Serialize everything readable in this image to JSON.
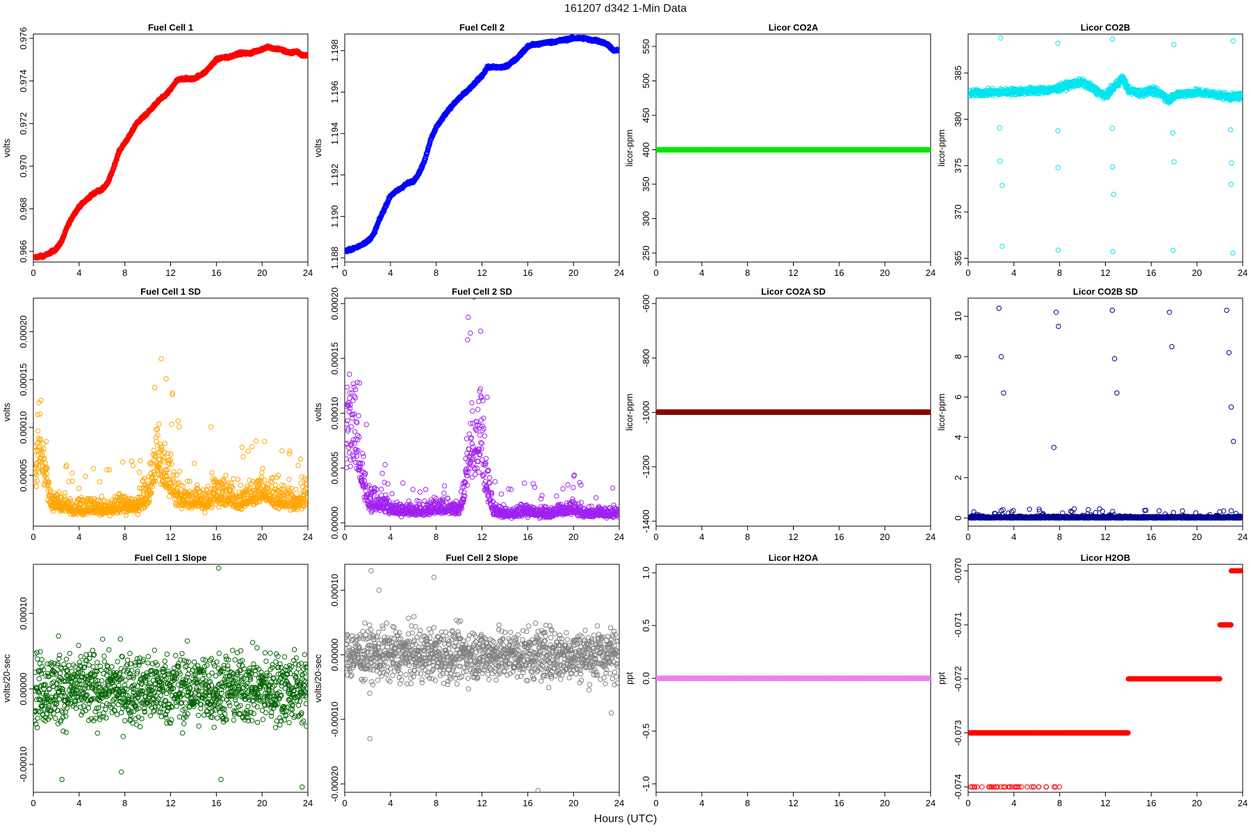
{
  "header": {
    "title": "161207   d342   1-Min Data"
  },
  "footer": {
    "xlabel": "Hours (UTC)"
  },
  "x_axis": {
    "range": [
      0,
      24
    ],
    "ticks": [
      "0",
      "4",
      "8",
      "12",
      "16",
      "20",
      "24"
    ]
  },
  "chart_data": [
    {
      "id": "fc1",
      "type": "scatter",
      "title": "Fuel Cell 1",
      "ylabel": "volts",
      "color": "#ff0000",
      "ylim": [
        0.9655,
        0.9762
      ],
      "yticks": [
        "0.966",
        "0.968",
        "0.970",
        "0.972",
        "0.974",
        "0.976"
      ],
      "ytick_values": [
        0.966,
        0.968,
        0.97,
        0.972,
        0.974,
        0.976
      ],
      "x": [
        0,
        1,
        2,
        2.5,
        3,
        3.5,
        4,
        5,
        5.5,
        6,
        6.5,
        7,
        7.5,
        8,
        8.5,
        9,
        10,
        11,
        11.5,
        12,
        12.5,
        13,
        13.5,
        14,
        15,
        15.5,
        16,
        16.5,
        17,
        17.5,
        18,
        19,
        20,
        20.5,
        21,
        21.5,
        22,
        22.5,
        23,
        23.5
      ],
      "y": [
        0.9657,
        0.9658,
        0.9661,
        0.9665,
        0.9672,
        0.9677,
        0.9681,
        0.9686,
        0.9688,
        0.9689,
        0.9692,
        0.9699,
        0.9707,
        0.9711,
        0.9715,
        0.972,
        0.9725,
        0.9731,
        0.9733,
        0.9736,
        0.974,
        0.9741,
        0.9741,
        0.9741,
        0.9744,
        0.9747,
        0.975,
        0.9751,
        0.9751,
        0.9752,
        0.9753,
        0.9753,
        0.9755,
        0.9756,
        0.9755,
        0.9755,
        0.9754,
        0.9753,
        0.9754,
        0.9752
      ]
    },
    {
      "id": "fc2",
      "type": "scatter",
      "title": "Fuel Cell 2",
      "ylabel": "volts",
      "color": "#0000ff",
      "ylim": [
        1.1878,
        1.1988
      ],
      "yticks": [
        "1.188",
        "1.190",
        "1.192",
        "1.194",
        "1.196",
        "1.198"
      ],
      "ytick_values": [
        1.188,
        1.19,
        1.192,
        1.194,
        1.196,
        1.198
      ],
      "x": [
        0,
        1,
        2,
        2.5,
        3,
        3.5,
        4,
        5,
        5.5,
        6,
        6.5,
        7,
        7.5,
        8,
        8.5,
        9,
        10,
        11,
        11.5,
        12,
        12.5,
        13,
        13.5,
        14,
        15,
        15.5,
        16,
        16.5,
        17,
        17.5,
        18,
        19,
        20,
        20.5,
        21,
        21.5,
        22,
        22.5,
        23,
        23.5
      ],
      "y": [
        1.1883,
        1.1885,
        1.1888,
        1.1891,
        1.1898,
        1.1904,
        1.191,
        1.1914,
        1.1916,
        1.1917,
        1.1921,
        1.1927,
        1.1937,
        1.1943,
        1.1947,
        1.1951,
        1.1957,
        1.1962,
        1.1965,
        1.1968,
        1.1972,
        1.1972,
        1.1972,
        1.1972,
        1.1976,
        1.1979,
        1.1982,
        1.1983,
        1.1983,
        1.1984,
        1.1984,
        1.1985,
        1.1986,
        1.1986,
        1.1986,
        1.1985,
        1.1985,
        1.1984,
        1.1983,
        1.198
      ]
    },
    {
      "id": "co2a",
      "type": "scatter",
      "title": "Licor CO2A",
      "ylabel": "licor-ppm",
      "color": "#00e600",
      "ylim": [
        237,
        568
      ],
      "yticks": [
        "250",
        "300",
        "350",
        "400",
        "450",
        "500",
        "550"
      ],
      "ytick_values": [
        250,
        300,
        350,
        400,
        450,
        500,
        550
      ],
      "x": [
        0,
        24
      ],
      "y": [
        400,
        400
      ]
    },
    {
      "id": "co2b",
      "type": "scatter",
      "title": "Licor CO2B",
      "ylabel": "licor-ppm",
      "color": "#00e5ee",
      "ylim": [
        364.6,
        389.2
      ],
      "yticks": [
        "365",
        "370",
        "375",
        "380",
        "385"
      ],
      "ytick_values": [
        365,
        370,
        375,
        380,
        385
      ],
      "x": [
        0,
        2,
        4,
        6,
        7.5,
        9,
        10,
        12,
        13,
        13.5,
        14,
        15,
        16,
        17,
        17.5,
        18,
        19,
        20,
        21,
        22,
        23,
        24
      ],
      "y": [
        382.8,
        382.9,
        383.0,
        383.1,
        383.2,
        383.8,
        384.0,
        382.5,
        383.8,
        384.5,
        383.2,
        382.8,
        383.1,
        382.7,
        382.0,
        382.6,
        382.8,
        382.9,
        382.8,
        382.6,
        382.4,
        382.5
      ]
    },
    {
      "id": "fc1sd",
      "type": "scatter",
      "title": "Fuel Cell 1 SD",
      "ylabel": "volts",
      "color": "#ffa500",
      "ylim": [
        -3e-06,
        0.000235
      ],
      "yticks": [
        "0.00005",
        "0.00010",
        "0.00015",
        "0.00020"
      ],
      "ytick_values": [
        5e-05,
        0.0001,
        0.00015,
        0.0002
      ],
      "x": [
        0,
        0.5,
        1,
        1.5,
        2,
        3,
        4,
        5,
        6,
        7,
        8,
        9,
        10,
        10.5,
        11,
        11.5,
        12,
        12.5,
        13,
        14,
        15,
        16,
        17,
        18,
        19,
        20,
        21,
        22,
        23,
        23.5
      ],
      "y": [
        4e-05,
        8e-05,
        5e-05,
        2e-05,
        2e-05,
        1.5e-05,
        1.3e-05,
        1.5e-05,
        1.4e-05,
        1.5e-05,
        1.7e-05,
        1.6e-05,
        3e-05,
        5e-05,
        6e-05,
        5e-05,
        4e-05,
        3e-05,
        2.5e-05,
        2.2e-05,
        2e-05,
        3e-05,
        2.5e-05,
        2e-05,
        2.5e-05,
        3e-05,
        2.5e-05,
        2.2e-05,
        2e-05,
        2.5e-05
      ]
    },
    {
      "id": "fc2sd",
      "type": "scatter",
      "title": "Fuel Cell 2 SD",
      "ylabel": "volts",
      "color": "#a020f0",
      "ylim": [
        -3e-06,
        0.000205
      ],
      "yticks": [
        "0.00000",
        "0.00005",
        "0.00010",
        "0.00015",
        "0.00020"
      ],
      "ytick_values": [
        0,
        5e-05,
        0.0001,
        0.00015,
        0.0002
      ],
      "x": [
        0,
        0.5,
        1,
        1.5,
        2,
        3,
        4,
        5,
        6,
        7,
        8,
        9,
        10,
        10.5,
        11,
        11.5,
        12,
        12.5,
        13,
        14,
        15,
        16,
        17,
        18,
        19,
        20,
        21,
        22,
        23,
        23.5
      ],
      "y": [
        6e-05,
        9e-05,
        7e-05,
        4e-05,
        2e-05,
        1.5e-05,
        1.2e-05,
        1e-05,
        1e-05,
        1e-05,
        1.2e-05,
        1.2e-05,
        1e-05,
        3e-05,
        6e-05,
        7e-05,
        6e-05,
        3e-05,
        1e-05,
        8e-06,
        8e-06,
        1e-05,
        8e-06,
        8e-06,
        1e-05,
        1.2e-05,
        8e-06,
        8e-06,
        8e-06,
        8e-06
      ]
    },
    {
      "id": "co2asd",
      "type": "scatter",
      "title": "Licor CO2A SD",
      "ylabel": "licor-ppm",
      "color": "#8b0000",
      "ylim": [
        -1418,
        -580
      ],
      "yticks": [
        "-1400",
        "-1200",
        "-1000",
        "-800",
        "-600"
      ],
      "ytick_values": [
        -1400,
        -1200,
        -1000,
        -800,
        -600
      ],
      "x": [
        0,
        24
      ],
      "y": [
        -999,
        -999
      ]
    },
    {
      "id": "co2bsd",
      "type": "scatter",
      "title": "Licor CO2B SD",
      "ylabel": "licor-ppm",
      "color": "#00008b",
      "ylim": [
        -0.4,
        10.9
      ],
      "yticks": [
        "0",
        "2",
        "4",
        "6",
        "8",
        "10"
      ],
      "ytick_values": [
        0,
        2,
        4,
        6,
        8,
        10
      ],
      "x": [
        0,
        2.7,
        2.9,
        3.1,
        7.5,
        7.7,
        7.9,
        12.6,
        12.8,
        13.0,
        17.6,
        17.8,
        22.6,
        22.8,
        23.0,
        23.2
      ],
      "y": [
        0.05,
        10.4,
        8.0,
        6.2,
        3.5,
        10.2,
        9.5,
        10.3,
        7.9,
        6.2,
        10.2,
        8.5,
        10.3,
        8.2,
        5.5,
        3.8
      ]
    },
    {
      "id": "fc1slope",
      "type": "scatter",
      "title": "Fuel Cell 1 Slope",
      "ylabel": "volts/20-sec",
      "color": "#006400",
      "ylim": [
        -0.000137,
        0.000165
      ],
      "yticks": [
        "-0.00010",
        "0.00000",
        "0.00010"
      ],
      "ytick_values": [
        -0.0001,
        0,
        0.0001
      ],
      "x": [
        0,
        2.2,
        2.5,
        7.7,
        16.2,
        16.4,
        23.5
      ],
      "y": [
        0,
        7e-05,
        -0.00012,
        -0.00011,
        0.00016,
        -0.00012,
        -0.00013
      ]
    },
    {
      "id": "fc2slope",
      "type": "scatter",
      "title": "Fuel Cell 2 Slope",
      "ylabel": "volts/20-sec",
      "color": "#808080",
      "ylim": [
        -0.000213,
        0.00014
      ],
      "yticks": [
        "-0.00020",
        "-0.00010",
        "0.00000",
        "0.00010"
      ],
      "ytick_values": [
        -0.0002,
        -0.0001,
        0,
        0.0001
      ],
      "x": [
        0,
        2.3,
        2.2,
        3.0,
        7.8,
        16.9,
        23.3
      ],
      "y": [
        0,
        0.00013,
        -0.00013,
        0.0001,
        0.00012,
        -0.00021,
        -9e-05
      ]
    },
    {
      "id": "h2oa",
      "type": "scatter",
      "title": "Licor H2OA",
      "ylabel": "ppt",
      "color": "#ee82ee",
      "ylim": [
        -1.08,
        1.08
      ],
      "yticks": [
        "-1.0",
        "-0.5",
        "0.0",
        "0.5",
        "1.0"
      ],
      "ytick_values": [
        -1,
        -0.5,
        0,
        0.5,
        1
      ],
      "x": [
        0,
        24
      ],
      "y": [
        0,
        0
      ]
    },
    {
      "id": "h2ob",
      "type": "scatter",
      "title": "Licor H2OB",
      "ylabel": "ppt",
      "color": "#ff0000",
      "ylim": [
        -0.0741,
        -0.06988
      ],
      "yticks": [
        "-0.074",
        "-0.073",
        "-0.072",
        "-0.071",
        "-0.070"
      ],
      "ytick_values": [
        -0.074,
        -0.073,
        -0.072,
        -0.071,
        -0.07
      ],
      "x": [
        0,
        14,
        14,
        22,
        22,
        23,
        23,
        24
      ],
      "y": [
        -0.073,
        -0.073,
        -0.072,
        -0.072,
        -0.071,
        -0.071,
        -0.07,
        -0.07
      ]
    }
  ]
}
